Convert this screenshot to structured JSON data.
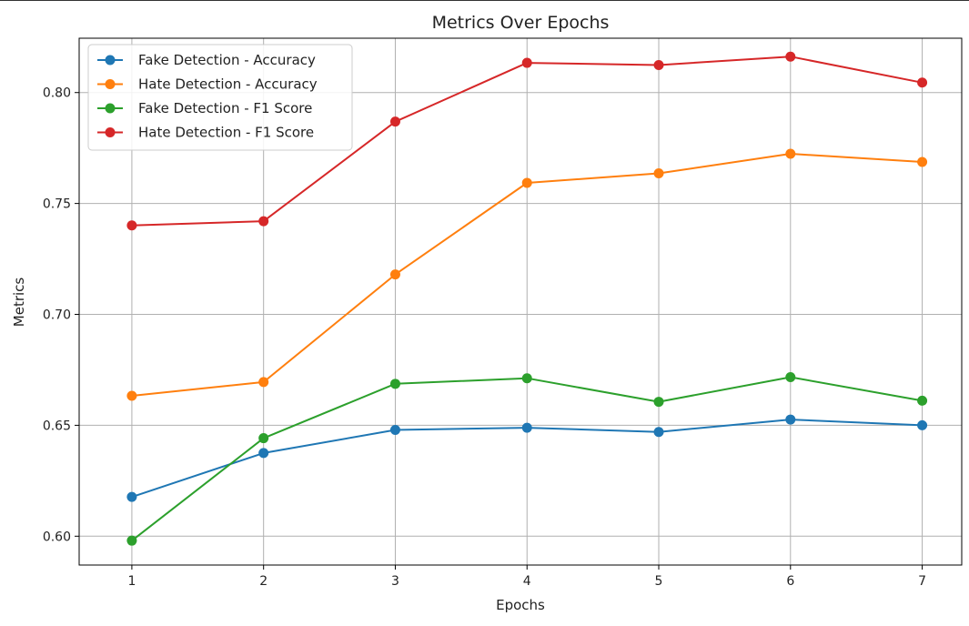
{
  "chart_data": {
    "type": "line",
    "title": "Metrics Over Epochs",
    "xlabel": "Epochs",
    "ylabel": "Metrics",
    "x": [
      1,
      2,
      3,
      4,
      5,
      6,
      7
    ],
    "x_tick_labels": [
      "1",
      "2",
      "3",
      "4",
      "5",
      "6",
      "7"
    ],
    "y_ticks": [
      0.6,
      0.65,
      0.7,
      0.75,
      0.8
    ],
    "y_tick_labels": [
      "0.60",
      "0.65",
      "0.70",
      "0.75",
      "0.80"
    ],
    "xlim": [
      0.6,
      7.3
    ],
    "ylim": [
      0.587,
      0.8245
    ],
    "grid": true,
    "legend_position": "upper-left",
    "marker": "circle",
    "series": [
      {
        "name": "Fake Detection - Accuracy",
        "color": "#1f77b4",
        "values": [
          0.6177,
          0.6375,
          0.6479,
          0.6489,
          0.647,
          0.6526,
          0.65
        ]
      },
      {
        "name": "Hate Detection - Accuracy",
        "color": "#ff7f0e",
        "values": [
          0.6633,
          0.6695,
          0.718,
          0.7593,
          0.7636,
          0.7724,
          0.7687
        ]
      },
      {
        "name": "Fake Detection - F1 Score",
        "color": "#2ca02c",
        "values": [
          0.598,
          0.6442,
          0.6687,
          0.6712,
          0.6606,
          0.6717,
          0.6611
        ]
      },
      {
        "name": "Hate Detection - F1 Score",
        "color": "#d62728",
        "values": [
          0.7401,
          0.742,
          0.7869,
          0.8134,
          0.8124,
          0.8162,
          0.8045
        ]
      }
    ]
  }
}
